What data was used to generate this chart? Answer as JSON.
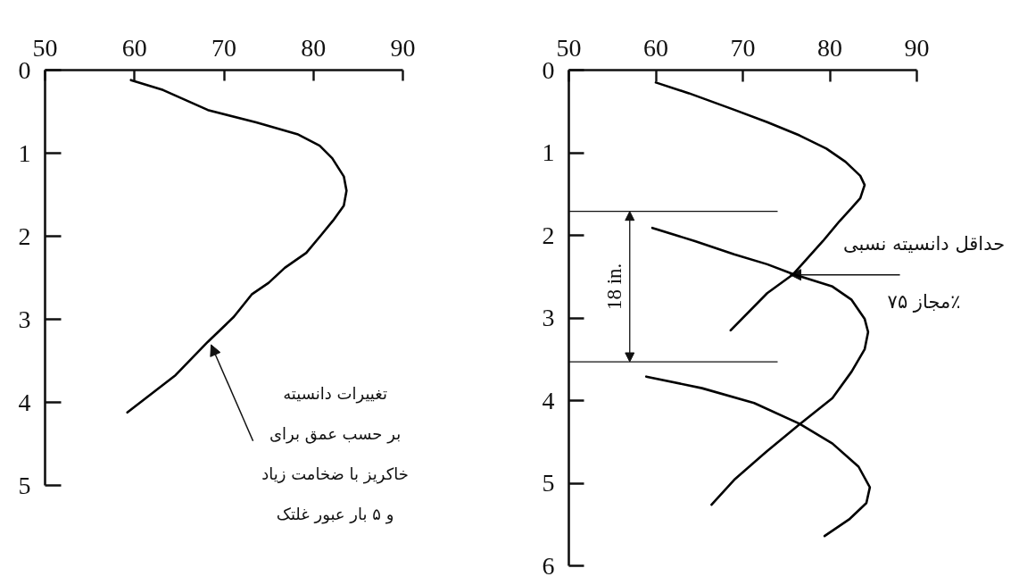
{
  "chart_data": [
    {
      "type": "line",
      "xlim": [
        50,
        90
      ],
      "xticks": [
        50,
        60,
        70,
        80,
        90
      ],
      "ylim": [
        5,
        0
      ],
      "yticks": [
        0,
        1,
        2,
        3,
        4,
        5
      ],
      "series": [
        {
          "color": "#000000",
          "x": [
            59.6,
            63.2,
            68.2,
            73.6,
            78.2,
            80.7,
            82.1,
            83.4,
            83.7,
            83.4,
            82.2,
            80.9,
            79.2,
            76.8,
            75.0,
            73.1,
            71.1,
            68.2,
            64.6,
            59.2
          ],
          "values": [
            0.12,
            0.24,
            0.48,
            0.63,
            0.77,
            0.91,
            1.06,
            1.28,
            1.45,
            1.63,
            1.81,
            1.98,
            2.2,
            2.38,
            2.56,
            2.7,
            2.97,
            3.27,
            3.67,
            4.12
          ]
        }
      ],
      "annotations": [
        "تغییرات دانسیته بر حسب عمق برای خاکریز با ضخامت زیاد و ۵ بار عبور غلتک"
      ]
    },
    {
      "type": "line",
      "xlim": [
        50,
        90
      ],
      "xticks": [
        50,
        60,
        70,
        80,
        90
      ],
      "ylim": [
        6,
        0
      ],
      "yticks": [
        0,
        1,
        2,
        3,
        4,
        5,
        6
      ],
      "series": [
        {
          "color": "#000000",
          "x": [
            60.0,
            63.8,
            69.0,
            72.8,
            76.5,
            79.6,
            81.8,
            83.5,
            84.0,
            83.5,
            82.5,
            81.1,
            79.2,
            75.8,
            72.8,
            68.6
          ],
          "values": [
            0.15,
            0.28,
            0.48,
            0.63,
            0.79,
            0.95,
            1.11,
            1.28,
            1.39,
            1.55,
            1.67,
            1.83,
            2.07,
            2.47,
            2.7,
            3.15
          ]
        },
        {
          "color": "#000000",
          "x": [
            59.6,
            64.5,
            69.0,
            72.8,
            75.8,
            80.3,
            82.5,
            84.0,
            84.4,
            84.0,
            82.5,
            80.3,
            76.5,
            72.8,
            69.0,
            66.4
          ],
          "values": [
            1.91,
            2.07,
            2.23,
            2.35,
            2.47,
            2.62,
            2.78,
            3.01,
            3.17,
            3.38,
            3.65,
            3.97,
            4.29,
            4.61,
            4.96,
            5.26
          ]
        },
        {
          "color": "#000000",
          "x": [
            58.9,
            65.3,
            71.3,
            76.5,
            80.3,
            83.3,
            84.6,
            84.2,
            82.2,
            79.4
          ],
          "values": [
            3.71,
            3.85,
            4.03,
            4.28,
            4.52,
            4.8,
            5.05,
            5.24,
            5.44,
            5.64
          ]
        }
      ],
      "ref_lines": [
        {
          "axis": "y",
          "value": 1.71
        },
        {
          "axis": "y",
          "value": 3.53
        }
      ],
      "annotations": [
        "18 in.",
        "حداقل دانسیته نسبی مجاز ۷۵٪"
      ]
    }
  ]
}
